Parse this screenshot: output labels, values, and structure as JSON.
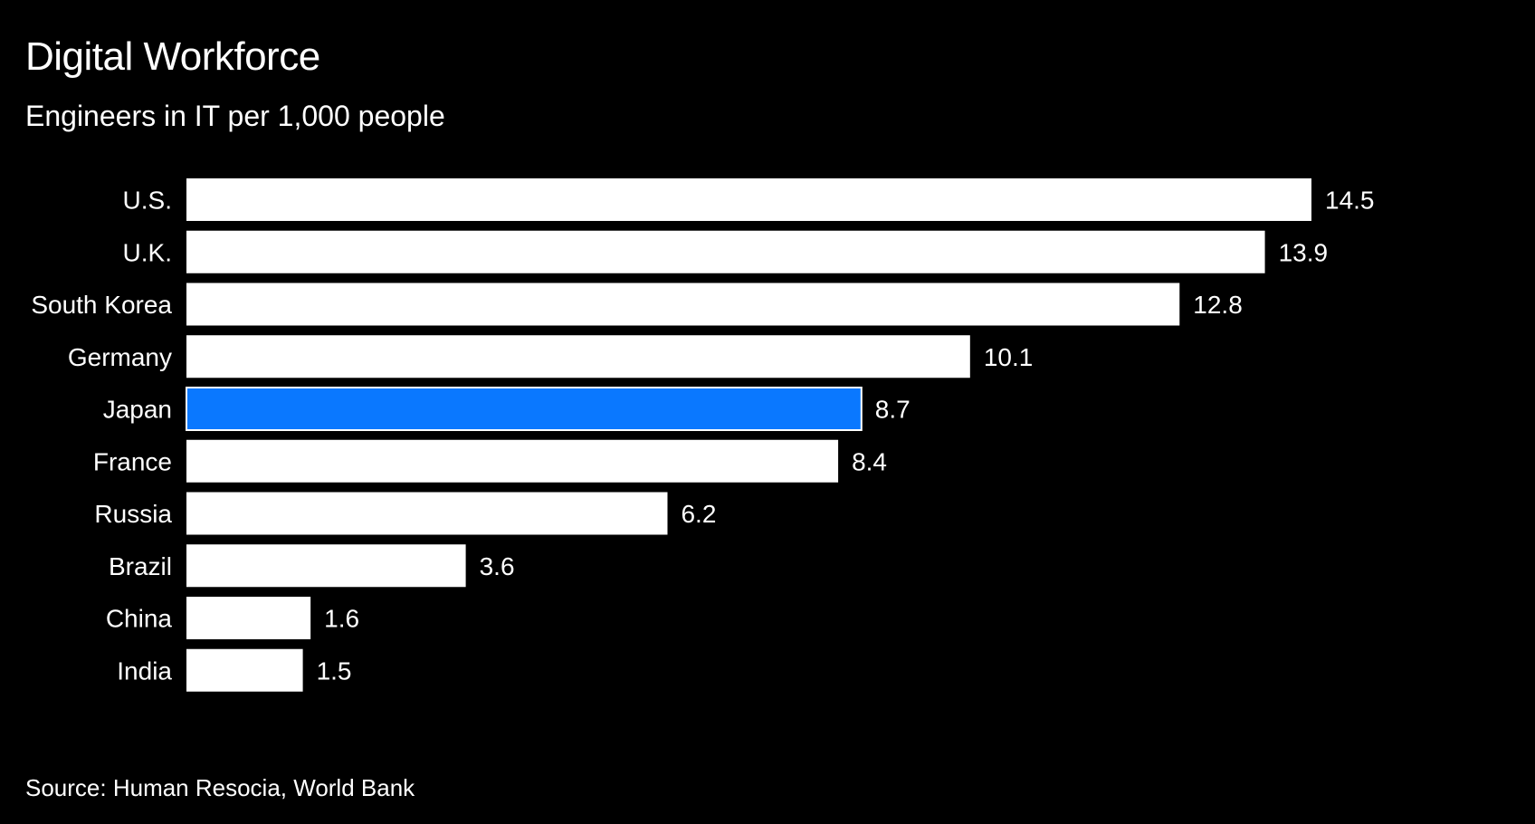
{
  "header": {
    "title": "Digital Workforce",
    "subtitle": "Engineers in IT per 1,000 people"
  },
  "footer": {
    "source": "Source: Human Resocia, World Bank"
  },
  "colors": {
    "background": "#000000",
    "bar_default": "#ffffff",
    "bar_highlight": "#0a78ff",
    "text": "#ffffff"
  },
  "chart_data": {
    "type": "bar",
    "orientation": "horizontal",
    "title": "Digital Workforce",
    "subtitle": "Engineers in IT per 1,000 people",
    "categories": [
      "U.S.",
      "U.K.",
      "South Korea",
      "Germany",
      "Japan",
      "France",
      "Russia",
      "Brazil",
      "China",
      "India"
    ],
    "values": [
      14.5,
      13.9,
      12.8,
      10.1,
      8.7,
      8.4,
      6.2,
      3.6,
      1.6,
      1.5
    ],
    "data_labels": [
      "14.5",
      "13.9",
      "12.8",
      "10.1",
      "8.7",
      "8.4",
      "6.2",
      "3.6",
      "1.6",
      "1.5"
    ],
    "highlighted_category": "Japan",
    "xlabel": "",
    "ylabel": "",
    "xlim": [
      0,
      14.5
    ],
    "grid": false,
    "legend": "none",
    "source": "Source: Human Resocia, World Bank"
  }
}
